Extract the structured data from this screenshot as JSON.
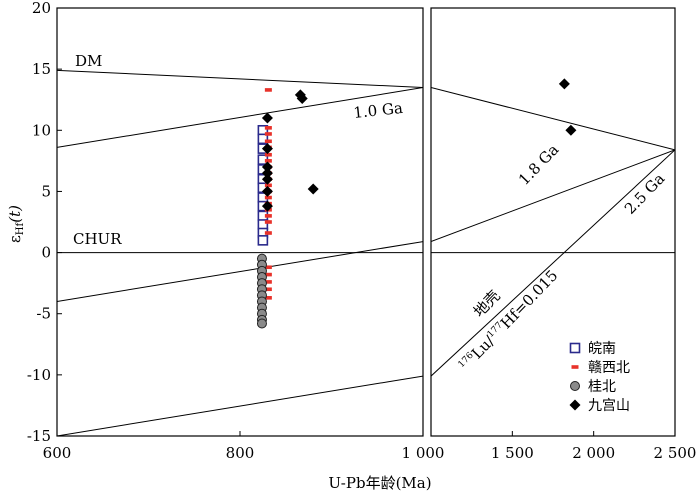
{
  "chart_data": {
    "type": "scatter",
    "xlabel": "U-Pb年龄(Ma)",
    "ylabel_main": "ε",
    "ylabel_sub": "Hf",
    "ylabel_tail": "(t)",
    "ylim": [
      -15,
      20
    ],
    "y_ticks": [
      -15,
      -10,
      -5,
      0,
      5,
      10,
      15,
      20
    ],
    "y_tick_labels": [
      "-15",
      "-10",
      "-5",
      "0",
      "5",
      "10",
      "15",
      "20"
    ],
    "panels": [
      {
        "xlim": [
          600,
          1000
        ],
        "x_ticks": [
          600,
          800,
          1000
        ],
        "x_tick_labels": [
          "600",
          "800",
          "1 000"
        ]
      },
      {
        "xlim": [
          1000,
          2500
        ],
        "x_ticks": [
          1500,
          2000,
          2500
        ],
        "x_tick_labels": [
          "1 500",
          "2 000",
          "2 500"
        ]
      }
    ],
    "reference_lines": {
      "DM": "DM",
      "CHUR": "CHUR",
      "ga10": "1.0 Ga",
      "ga18": "1.8 Ga",
      "ga25": "2.5 Ga",
      "crust": "地壳",
      "lu_ratio": "Hf=0.015",
      "lu_sup1": "176",
      "lu_lu": "Lu/",
      "lu_sup2": "177"
    },
    "series": [
      {
        "name": "皖南",
        "marker": "open-square",
        "color": "#2a2a8c",
        "points": [
          [
            825,
            10.0
          ],
          [
            825,
            9.3
          ],
          [
            825,
            8.5
          ],
          [
            825,
            7.6
          ],
          [
            825,
            6.8
          ],
          [
            825,
            6.0
          ],
          [
            825,
            5.3
          ],
          [
            825,
            4.5
          ],
          [
            825,
            3.8
          ],
          [
            825,
            3.0
          ],
          [
            825,
            2.3
          ],
          [
            825,
            1.6
          ],
          [
            825,
            1.0
          ]
        ]
      },
      {
        "name": "赣西北",
        "marker": "dash",
        "color": "#e8322a",
        "points": [
          [
            831,
            13.3
          ],
          [
            831,
            10.2
          ],
          [
            831,
            9.7
          ],
          [
            831,
            9.1
          ],
          [
            831,
            8.6
          ],
          [
            831,
            8.0
          ],
          [
            831,
            7.5
          ],
          [
            831,
            7.0
          ],
          [
            831,
            6.5
          ],
          [
            831,
            6.0
          ],
          [
            831,
            5.5
          ],
          [
            831,
            5.0
          ],
          [
            831,
            4.5
          ],
          [
            831,
            4.0
          ],
          [
            831,
            3.5
          ],
          [
            831,
            3.0
          ],
          [
            831,
            2.5
          ],
          [
            831,
            1.6
          ],
          [
            831,
            -1.2
          ],
          [
            831,
            -1.8
          ],
          [
            831,
            -2.4
          ],
          [
            831,
            -3.0
          ],
          [
            831,
            -3.7
          ]
        ]
      },
      {
        "name": "桂北",
        "marker": "filled-circle",
        "color": "#8a8a8a",
        "points": [
          [
            824,
            -0.5
          ],
          [
            824,
            -1.0
          ],
          [
            824,
            -1.5
          ],
          [
            824,
            -2.0
          ],
          [
            824,
            -2.5
          ],
          [
            824,
            -3.0
          ],
          [
            824,
            -3.5
          ],
          [
            824,
            -4.0
          ],
          [
            824,
            -4.5
          ],
          [
            824,
            -5.0
          ],
          [
            824,
            -5.5
          ],
          [
            824,
            -5.8
          ]
        ]
      },
      {
        "name": "九宫山",
        "marker": "filled-diamond",
        "color": "#000000",
        "points": [
          [
            830,
            11.0
          ],
          [
            830,
            8.5
          ],
          [
            830,
            7.0
          ],
          [
            830,
            6.5
          ],
          [
            830,
            6.0
          ],
          [
            830,
            5.0
          ],
          [
            830,
            3.8
          ],
          [
            866,
            12.9
          ],
          [
            868,
            12.6
          ],
          [
            880,
            5.2
          ],
          [
            1820,
            13.8
          ],
          [
            1860,
            10.0
          ]
        ]
      }
    ]
  }
}
